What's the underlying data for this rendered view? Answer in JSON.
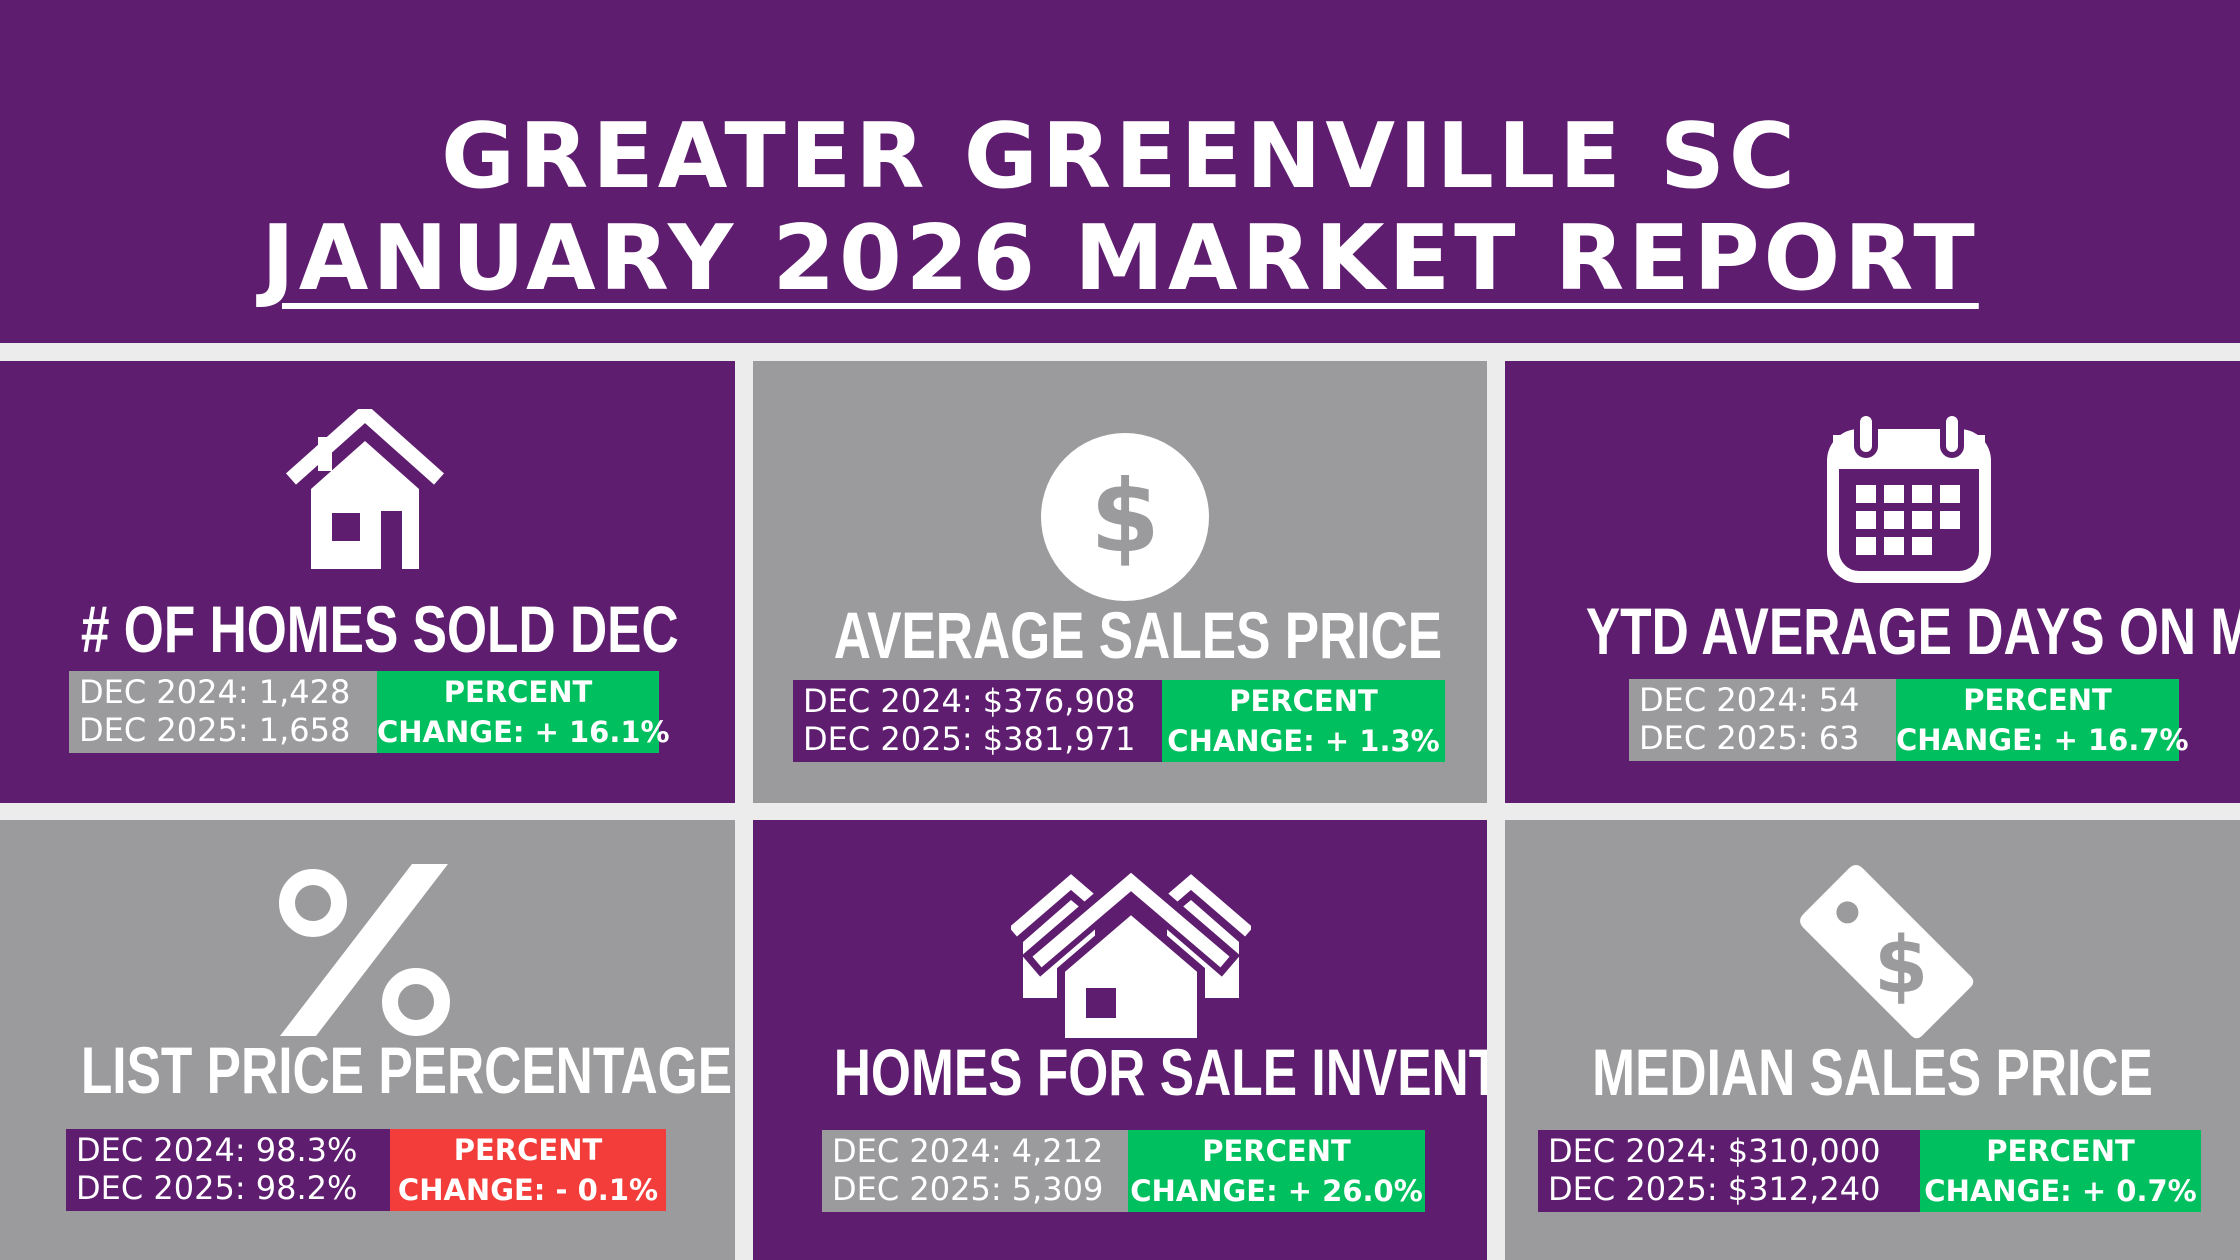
{
  "header": {
    "line1": "GREATER GREENVILLE SC",
    "line2": "JANUARY 2026 MARKET REPORT"
  },
  "colors": {
    "purple": "#5f1d70",
    "gray": "#9b9b9e",
    "green": "#00bf5f",
    "red": "#f23d3a",
    "white": "#ffffff"
  },
  "panels": [
    {
      "title": "# OF HOMES SOLD DEC",
      "icon": "house-icon",
      "line1": "DEC 2024: 1,428",
      "line2": "DEC 2025: 1,658",
      "change1": "PERCENT",
      "change2": "CHANGE: + 16.1%"
    },
    {
      "title": "AVERAGE SALES PRICE",
      "icon": "dollar-coin-icon",
      "line1": "DEC 2024: $376,908",
      "line2": "DEC 2025: $381,971",
      "change1": "PERCENT",
      "change2": "CHANGE: + 1.3%"
    },
    {
      "title": "YTD AVERAGE DAYS ON MARKET",
      "icon": "calendar-icon",
      "line1": "DEC 2024: 54",
      "line2": "DEC 2025: 63",
      "change1": "PERCENT",
      "change2": "CHANGE: + 16.7%"
    },
    {
      "title": "LIST PRICE PERCENTAGE",
      "icon": "percent-icon",
      "line1": "DEC 2024: 98.3%",
      "line2": "DEC 2025: 98.2%",
      "change1": "PERCENT",
      "change2": "CHANGE: - 0.1%"
    },
    {
      "title": "HOMES FOR SALE INVENTORY",
      "icon": "houses-icon",
      "line1": "DEC 2024: 4,212",
      "line2": "DEC 2025: 5,309",
      "change1": "PERCENT",
      "change2": "CHANGE: + 26.0%"
    },
    {
      "title": "MEDIAN SALES PRICE",
      "icon": "price-tag-icon",
      "line1": "DEC 2024: $310,000",
      "line2": "DEC 2025: $312,240",
      "change1": "PERCENT",
      "change2": "CHANGE:  + 0.7%"
    }
  ]
}
